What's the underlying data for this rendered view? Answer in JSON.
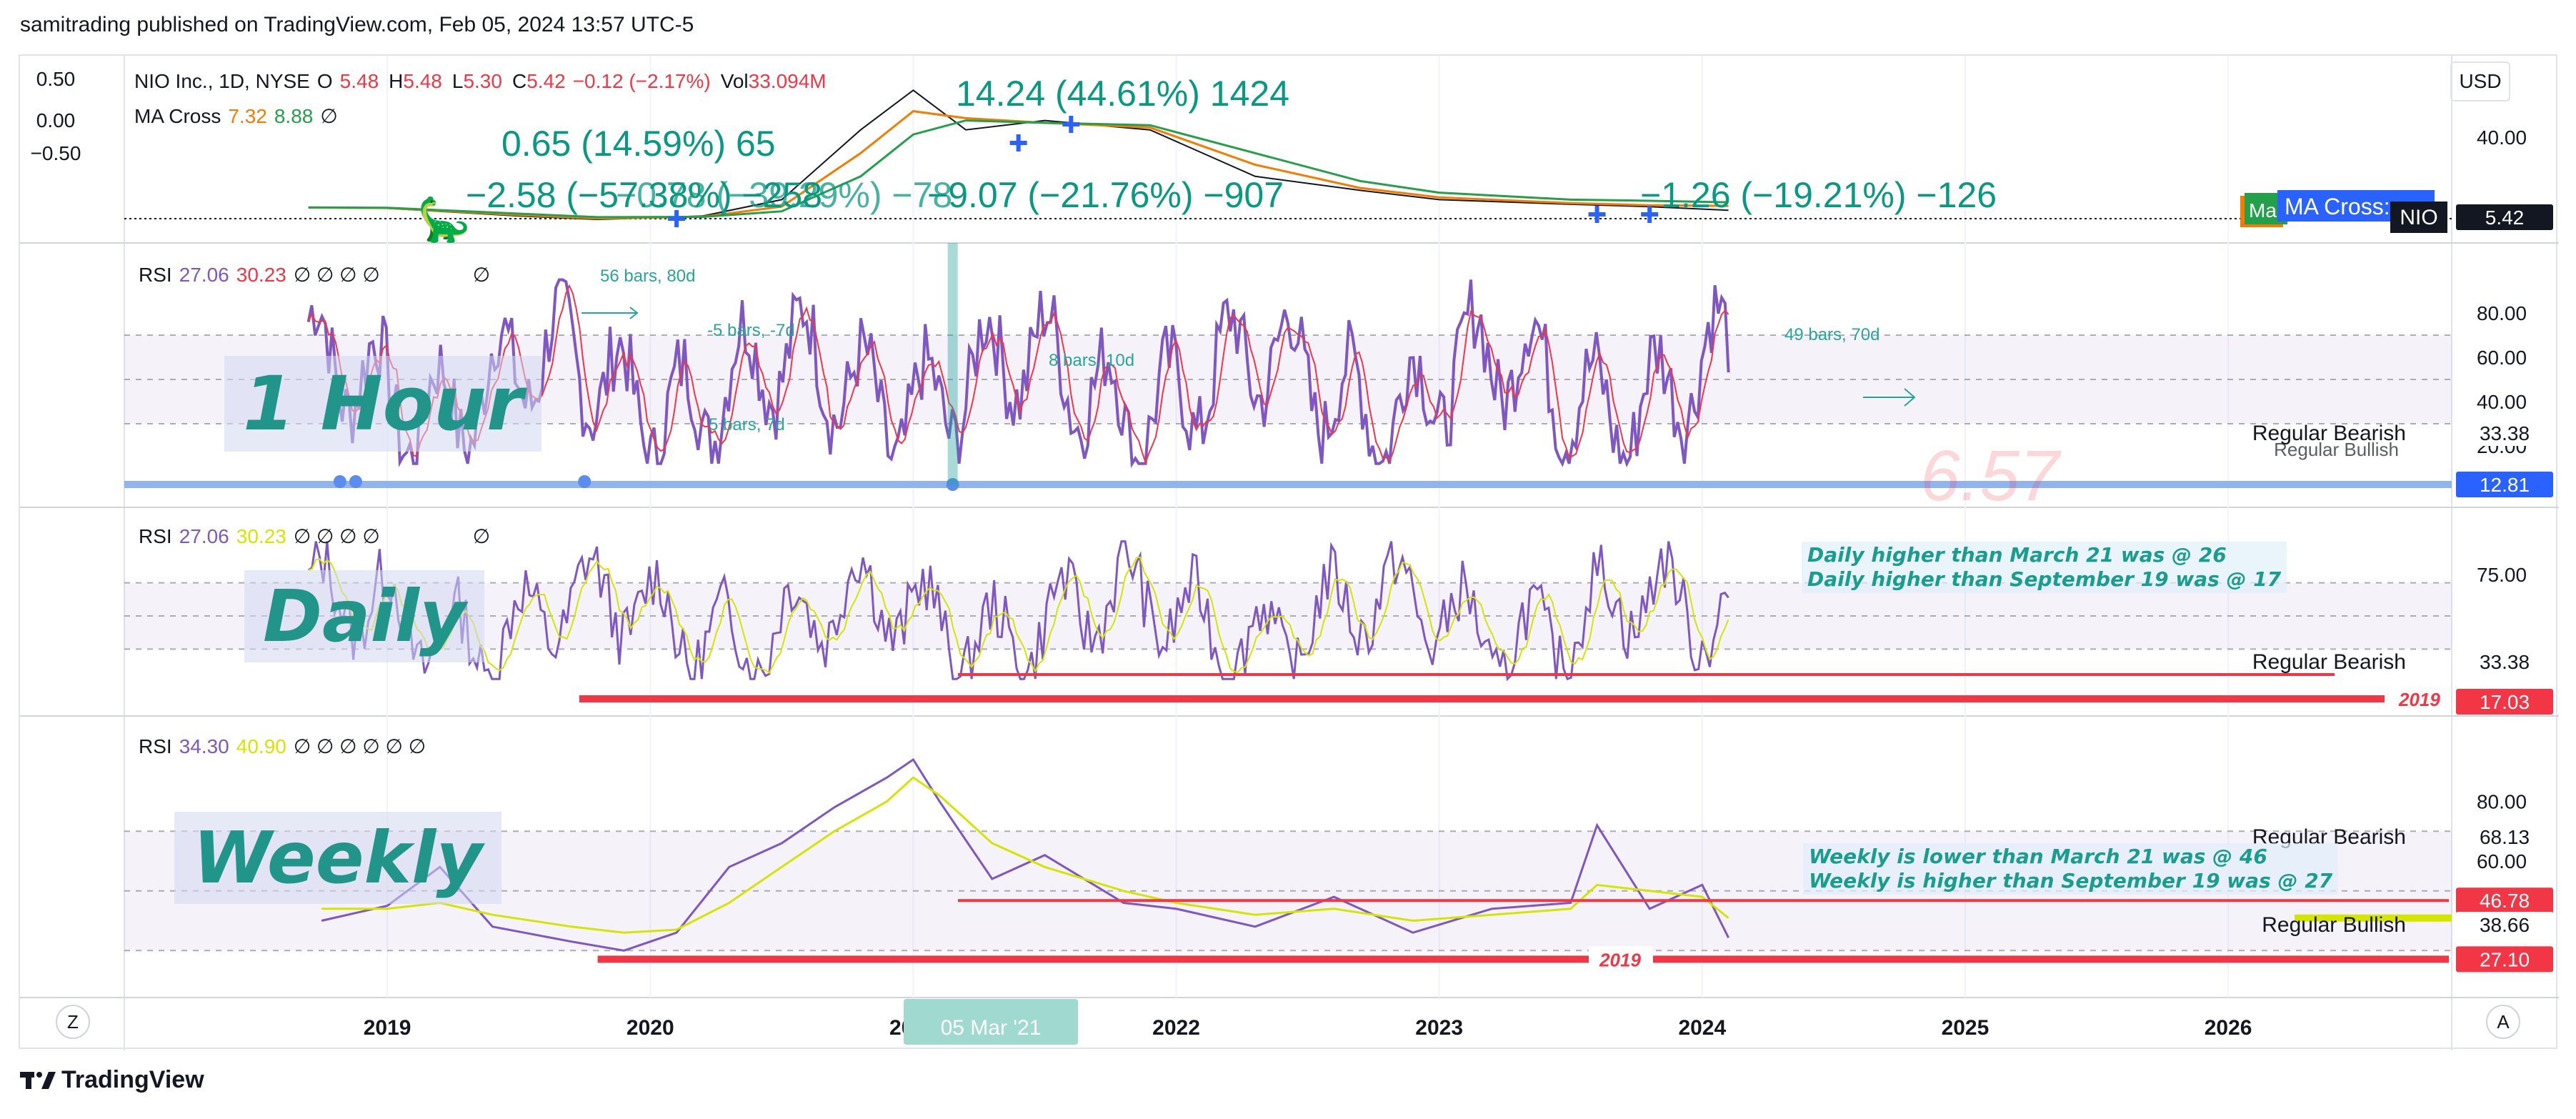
{
  "publisher": "samitrading published on TradingView.com, Feb 05, 2024 13:57 UTC-5",
  "footer": {
    "brand": "TradingView"
  },
  "currency": "USD",
  "buttons": {
    "z": "Z",
    "a": "A"
  },
  "main_legend": {
    "symbol": "NIO Inc., 1D, NYSE",
    "o_label": "O",
    "o_value": "5.48",
    "h_label": "H",
    "h_value": "5.48",
    "l_label": "L",
    "l_value": "5.30",
    "c_label": "C",
    "c_value": "5.42",
    "change": "−0.12 (−2.17%)",
    "vol_label": "Vol",
    "vol_value": "33.094M",
    "ma_label": "MA Cross",
    "ma1": "7.32",
    "ma2": "8.88",
    "ma_null": "∅"
  },
  "pane_legends": {
    "hourly": {
      "label": "RSI",
      "v1": "27.06",
      "v2": "30.23",
      "nulls": "∅ ∅ ∅ ∅",
      "null_last": "∅"
    },
    "daily": {
      "label": "RSI",
      "v1": "27.06",
      "v2": "30.23",
      "nulls": "∅ ∅ ∅ ∅",
      "null_last": "∅"
    },
    "weekly": {
      "label": "RSI",
      "v1": "34.30",
      "v2": "40.90",
      "nulls": "∅ ∅ ∅ ∅ ∅ ∅"
    }
  },
  "big_labels": {
    "hourly": "1 Hour",
    "daily": "Daily",
    "weekly": "Weekly"
  },
  "notes": {
    "daily": [
      "Daily higher than March 21 was @ 26",
      "Daily higher than September 19 was @ 17"
    ],
    "weekly": [
      "Weekly is lower than March 21 was @ 46",
      "Weekly is higher than September 19 was @ 27"
    ]
  },
  "measurements": {
    "m1": "14.24 (44.61%) 1424",
    "m2": "0.65 (14.59%) 65",
    "m3": "−2.58 (−57.38%) −258",
    "m4": "−0.78 (−39.29%) −78",
    "m5": "−9.07 (−21.76%) −907",
    "m6": "−1.26 (−19.21%) −126"
  },
  "range_labels": {
    "r1": "56 bars, 80d",
    "r2": "-5 bars, -7d",
    "r3": "5 bars, 7d",
    "r4": "8 bars, 10d",
    "r5": "49 bars, 70d"
  },
  "line_labels": {
    "year_2019a": "2019",
    "year_2019b": "2019"
  },
  "right_labels": {
    "reg_bearish": "Regular Bearish",
    "reg_bullish": "Regular Bullish",
    "nio": "NIO",
    "ma_cross_tag": "MA Cross:",
    "ma_tag": "Ma"
  },
  "price_scale": {
    "main_ticks": [
      "0.50",
      "0.00",
      "−0.50",
      "40.00"
    ],
    "main_last": "5.42",
    "hourly_ticks": [
      "80.00",
      "60.00",
      "40.00",
      "20.00"
    ],
    "hourly_badges": {
      "bearish": "33.38",
      "level": "12.81"
    },
    "daily_ticks": [
      "75.00"
    ],
    "daily_badges": {
      "bearish": "33.38",
      "level": "17.03"
    },
    "weekly_ticks": [
      "80.00",
      "60.00"
    ],
    "weekly_badges": {
      "bearish": "68.13",
      "level1": "46.78",
      "bullish": "38.66",
      "level2": "27.10"
    }
  },
  "watermark": "6.57",
  "time_axis": {
    "labels": [
      "2019",
      "2020",
      "2021",
      "2022",
      "2023",
      "2024",
      "2025",
      "2026"
    ],
    "highlight": "05 Mar '21"
  },
  "colors": {
    "rsi": "#7e57c2",
    "rsi_ma_red": "#f23645",
    "rsi_ma_yellow": "#d4e600",
    "ma_fast": "#f57c00",
    "ma_slow": "#22a04a",
    "measure": "#089981",
    "band": "#7e57c2",
    "red_line": "#f23645",
    "blue_line": "#90b4f0",
    "teal": "#26a69a"
  },
  "chart_data": [
    {
      "type": "line",
      "title": "NIO Inc., 1D, NYSE",
      "x": [
        2018.7,
        2019.0,
        2019.5,
        2019.8,
        2020.2,
        2020.5,
        2020.8,
        2021.0,
        2021.2,
        2021.5,
        2021.9,
        2022.3,
        2022.7,
        2023.0,
        2023.5,
        2023.8,
        2024.1
      ],
      "series": [
        {
          "name": "price",
          "values": [
            6.5,
            6.3,
            3.0,
            1.5,
            3.0,
            10,
            40,
            57,
            40,
            44,
            40,
            20,
            14,
            10,
            8,
            7,
            5.42
          ]
        },
        {
          "name": "MA Cross 7.32",
          "values": [
            6.6,
            6.4,
            3.4,
            1.9,
            2.7,
            7,
            30,
            48,
            45,
            43,
            41,
            25,
            15,
            11,
            8.5,
            7.6,
            7.32
          ]
        },
        {
          "name": "MA Cross 8.88",
          "values": [
            6.7,
            6.5,
            4.0,
            2.5,
            2.6,
            5,
            20,
            38,
            44,
            43,
            42,
            30,
            18,
            13,
            10,
            9.5,
            8.88
          ]
        }
      ]
    },
    {
      "type": "line",
      "title": "RSI (1 Hour)",
      "ylim": [
        0,
        100
      ],
      "bands": [
        30,
        70
      ],
      "last": [
        27.06,
        30.23
      ]
    },
    {
      "type": "line",
      "title": "RSI (Daily)",
      "ylim": [
        0,
        100
      ],
      "bands": [
        30,
        70
      ],
      "last": [
        27.06,
        30.23
      ]
    },
    {
      "type": "line",
      "title": "RSI (Weekly)",
      "x": [
        2018.75,
        2019.0,
        2019.2,
        2019.4,
        2019.7,
        2019.9,
        2020.1,
        2020.3,
        2020.5,
        2020.7,
        2020.9,
        2021.0,
        2021.1,
        2021.3,
        2021.5,
        2021.8,
        2022.0,
        2022.3,
        2022.6,
        2022.9,
        2023.2,
        2023.5,
        2023.6,
        2023.8,
        2024.0,
        2024.1
      ],
      "series": [
        {
          "name": "RSI",
          "values": [
            40,
            45,
            58,
            38,
            33,
            30,
            36,
            58,
            66,
            78,
            88,
            94,
            80,
            54,
            62,
            46,
            44,
            38,
            48,
            36,
            44,
            46,
            72,
            44,
            52,
            34.3
          ]
        },
        {
          "name": "RSI MA",
          "values": [
            44,
            44,
            46,
            42,
            38,
            36,
            37,
            46,
            58,
            70,
            80,
            88,
            82,
            66,
            58,
            50,
            46,
            42,
            44,
            40,
            42,
            44,
            52,
            50,
            48,
            40.9
          ]
        }
      ],
      "ylim": [
        20,
        100
      ],
      "bands": [
        30,
        70
      ],
      "levels": [
        68.13,
        46.78,
        38.66,
        27.1
      ]
    }
  ]
}
